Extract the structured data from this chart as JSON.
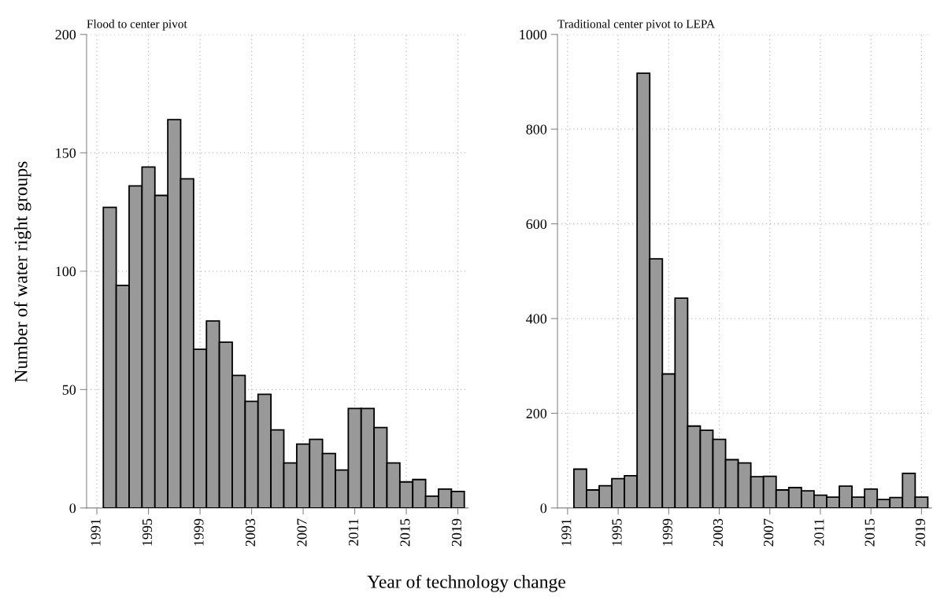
{
  "chart_data": [
    {
      "type": "histogram",
      "title": "Flood to center pivot",
      "ylabel": "Number of water right groups",
      "xlabel": "Year of technology change",
      "color": "#999999",
      "bins": [
        1991.5,
        1992.5,
        1993.5,
        1994.5,
        1995.5,
        1996.5,
        1997.5,
        1998.5,
        1999.5,
        2000.5,
        2001.5,
        2002.5,
        2003.5,
        2004.5,
        2005.5,
        2006.5,
        2007.5,
        2008.5,
        2009.5,
        2010.5,
        2011.5,
        2012.5,
        2013.5,
        2014.5,
        2015.5,
        2016.5,
        2017.5,
        2018.5,
        2019.5
      ],
      "values": [
        127,
        94,
        136,
        144,
        132,
        164,
        139,
        67,
        79,
        70,
        56,
        45,
        48,
        33,
        19,
        27,
        29,
        23,
        16,
        42,
        42,
        34,
        19,
        11,
        12,
        5,
        8,
        7
      ],
      "xlim": [
        1990.2,
        2019.8
      ],
      "xticks": [
        1991,
        1995,
        1999,
        2003,
        2007,
        2011,
        2015,
        2019
      ],
      "ylim": [
        0,
        200
      ],
      "yticks": [
        0,
        50,
        100,
        150,
        200
      ],
      "grid": true
    },
    {
      "type": "histogram",
      "title": "Traditional center pivot to LEPA",
      "color": "#999999",
      "bins": [
        1991.5,
        1992.5,
        1993.5,
        1994.5,
        1995.5,
        1996.5,
        1997.5,
        1998.5,
        1999.5,
        2000.5,
        2001.5,
        2002.5,
        2003.5,
        2004.5,
        2005.5,
        2006.5,
        2007.5,
        2008.5,
        2009.5,
        2010.5,
        2011.5,
        2012.5,
        2013.5,
        2014.5,
        2015.5,
        2016.5,
        2017.5,
        2018.5,
        2019.5
      ],
      "values": [
        82,
        38,
        47,
        62,
        68,
        918,
        526,
        283,
        443,
        173,
        164,
        145,
        102,
        95,
        66,
        67,
        38,
        43,
        36,
        27,
        23,
        46,
        23,
        40,
        18,
        22,
        73,
        23
      ],
      "xlim": [
        1990.2,
        2019.8
      ],
      "xticks": [
        1991,
        1995,
        1999,
        2003,
        2007,
        2011,
        2015,
        2019
      ],
      "ylim": [
        0,
        1000
      ],
      "yticks": [
        0,
        200,
        400,
        600,
        800,
        1000
      ],
      "grid": true
    }
  ]
}
